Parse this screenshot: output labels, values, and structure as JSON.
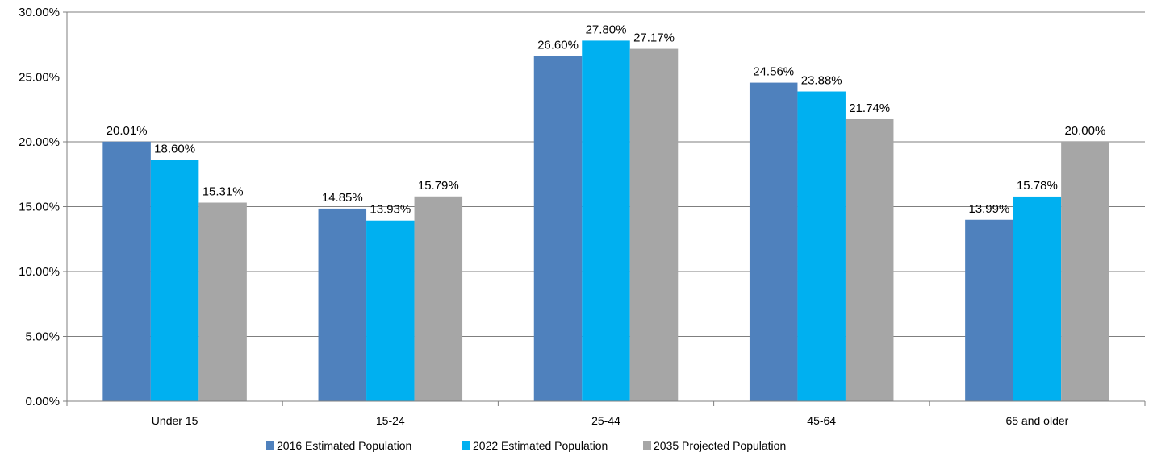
{
  "chart_data": {
    "type": "bar",
    "categories": [
      "Under 15",
      "15-24",
      "25-44",
      "45-64",
      "65 and older"
    ],
    "series": [
      {
        "name": "2016 Estimated Population",
        "values": [
          20.01,
          14.85,
          26.6,
          24.56,
          13.99
        ],
        "labels": [
          "20.01%",
          "14.85%",
          "26.60%",
          "24.56%",
          "13.99%"
        ],
        "color": "#4F81BD"
      },
      {
        "name": "2022 Estimated Population",
        "values": [
          18.6,
          13.93,
          27.8,
          23.88,
          15.78
        ],
        "labels": [
          "18.60%",
          "13.93%",
          "27.80%",
          "23.88%",
          "15.78%"
        ],
        "color": "#00B0F0"
      },
      {
        "name": "2035 Projected Population",
        "values": [
          15.31,
          15.79,
          27.17,
          21.74,
          20.0
        ],
        "labels": [
          "15.31%",
          "15.79%",
          "27.17%",
          "21.74%",
          "20.00%"
        ],
        "color": "#A6A6A6"
      }
    ],
    "y_ticks": [
      "0.00%",
      "5.00%",
      "10.00%",
      "15.00%",
      "20.00%",
      "25.00%",
      "30.00%"
    ],
    "ylim": [
      0,
      30
    ],
    "grid": true,
    "legend_position": "bottom"
  }
}
